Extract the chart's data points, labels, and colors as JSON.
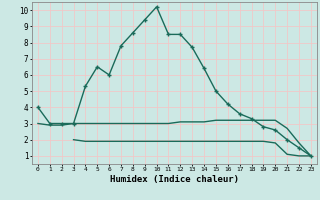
{
  "xlabel": "Humidex (Indice chaleur)",
  "ylabel": "",
  "bg_color": "#cce8e4",
  "grid_color": "#f0c8c8",
  "line_color": "#1a6b5a",
  "xlim": [
    -0.5,
    23.5
  ],
  "ylim": [
    0.5,
    10.5
  ],
  "xticks": [
    0,
    1,
    2,
    3,
    4,
    5,
    6,
    7,
    8,
    9,
    10,
    11,
    12,
    13,
    14,
    15,
    16,
    17,
    18,
    19,
    20,
    21,
    22,
    23
  ],
  "yticks": [
    1,
    2,
    3,
    4,
    5,
    6,
    7,
    8,
    9,
    10
  ],
  "line1_x": [
    0,
    1,
    2,
    3,
    4,
    5,
    6,
    7,
    8,
    9,
    10,
    11,
    12,
    13,
    14,
    15,
    16,
    17,
    18,
    19,
    20,
    21,
    22,
    23
  ],
  "line1_y": [
    4,
    3,
    3,
    3,
    5.3,
    6.5,
    6.0,
    7.8,
    8.6,
    9.4,
    10.2,
    8.5,
    8.5,
    7.7,
    6.4,
    5.0,
    4.2,
    3.6,
    3.3,
    2.8,
    2.6,
    2.0,
    1.5,
    1.0
  ],
  "line2_x": [
    0,
    1,
    2,
    3,
    4,
    5,
    6,
    7,
    8,
    9,
    10,
    11,
    12,
    13,
    14,
    15,
    16,
    17,
    18,
    19,
    20,
    21,
    22,
    23
  ],
  "line2_y": [
    3.0,
    2.9,
    2.9,
    3.0,
    3.0,
    3.0,
    3.0,
    3.0,
    3.0,
    3.0,
    3.0,
    3.0,
    3.1,
    3.1,
    3.1,
    3.2,
    3.2,
    3.2,
    3.2,
    3.2,
    3.2,
    2.7,
    1.8,
    1.0
  ],
  "line3_x": [
    3,
    4,
    5,
    6,
    7,
    8,
    9,
    10,
    11,
    12,
    13,
    14,
    15,
    16,
    17,
    18,
    19,
    20,
    21,
    22,
    23
  ],
  "line3_y": [
    2.0,
    1.9,
    1.9,
    1.9,
    1.9,
    1.9,
    1.9,
    1.9,
    1.9,
    1.9,
    1.9,
    1.9,
    1.9,
    1.9,
    1.9,
    1.9,
    1.9,
    1.8,
    1.1,
    1.0,
    1.0
  ]
}
